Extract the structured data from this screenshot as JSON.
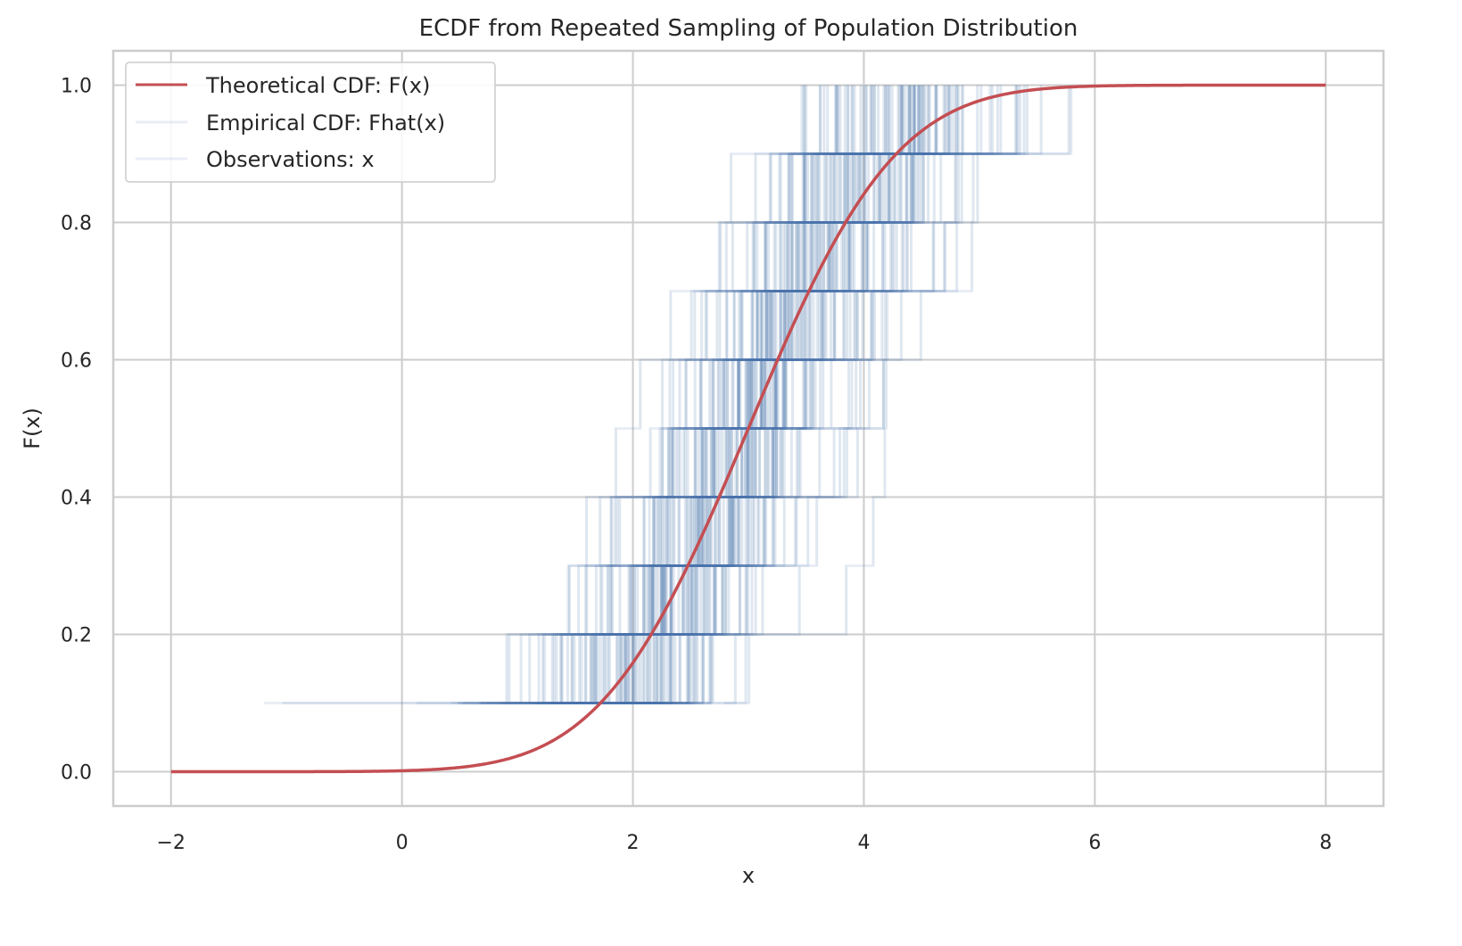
{
  "chart_data": {
    "type": "line",
    "title": "ECDF from Repeated Sampling of Population Distribution",
    "xlabel": "x",
    "ylabel": "F(x)",
    "xlim": [
      -2.5,
      8.5
    ],
    "ylim": [
      -0.05,
      1.05
    ],
    "xticks": [
      -2,
      0,
      2,
      4,
      6,
      8
    ],
    "xtick_labels": [
      "−2",
      "0",
      "2",
      "4",
      "6",
      "8"
    ],
    "yticks": [
      0.0,
      0.2,
      0.4,
      0.6,
      0.8,
      1.0
    ],
    "ytick_labels": [
      "0.0",
      "0.2",
      "0.4",
      "0.6",
      "0.8",
      "1.0"
    ],
    "grid": true,
    "legend_position": "top-left",
    "legend": [
      {
        "label": "Theoretical CDF: F(x)",
        "color": "#c44e52"
      },
      {
        "label": "Empirical CDF: Fhat(x)",
        "color": "#4c72b0"
      },
      {
        "label": "Observations: x",
        "color": "#4c72b0"
      }
    ],
    "theoretical": {
      "name": "Theoretical CDF: F(x)",
      "distribution": "normal",
      "mean": 3,
      "sd": 1,
      "x_range": [
        -2,
        8
      ],
      "color": "#c44e52"
    },
    "empirical": {
      "name": "Empirical CDF: Fhat(x)",
      "sample_size": 10,
      "repetitions": 100,
      "step_levels": [
        0.1,
        0.2,
        0.3,
        0.4,
        0.5,
        0.6,
        0.7,
        0.8,
        0.9,
        1.0
      ],
      "color": "#4c72b0",
      "alpha": 0.12
    }
  }
}
